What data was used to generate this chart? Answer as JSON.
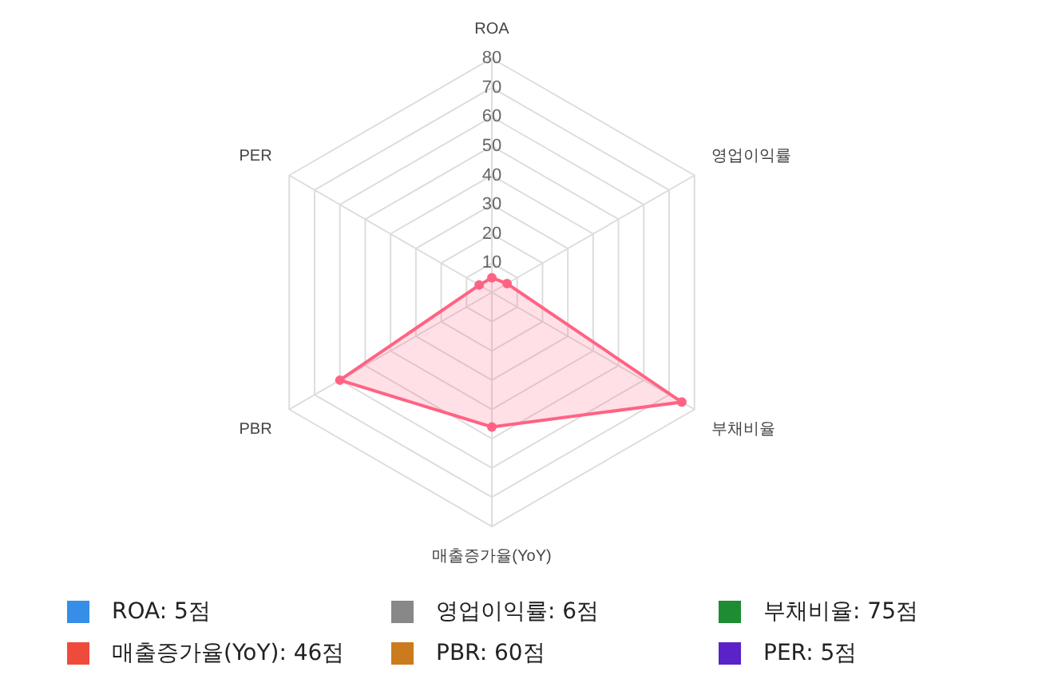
{
  "chart_data": {
    "type": "radar",
    "categories": [
      "ROA",
      "영업이익률",
      "부채비율",
      "매출증가율(YoY)",
      "PBR",
      "PER"
    ],
    "series": [
      {
        "color": "#ff6384",
        "values": [
          5,
          6,
          75,
          46,
          60,
          5
        ]
      }
    ],
    "ylim": [
      0,
      80
    ],
    "yticks": [
      10,
      20,
      30,
      40,
      50,
      60,
      70,
      80
    ],
    "grid": true,
    "legend": false,
    "value_labels": [
      "ROA: 5점",
      "영업이익률: 6점",
      "부채비율: 75점",
      "매출증가율(YoY): 46점",
      "PBR: 60점",
      "PER: 5점"
    ],
    "colors": [
      "#368ee6",
      "#888888",
      "#1e8c32",
      "#ee4b3c",
      "#cc7a1e",
      "#5a23c8"
    ]
  }
}
